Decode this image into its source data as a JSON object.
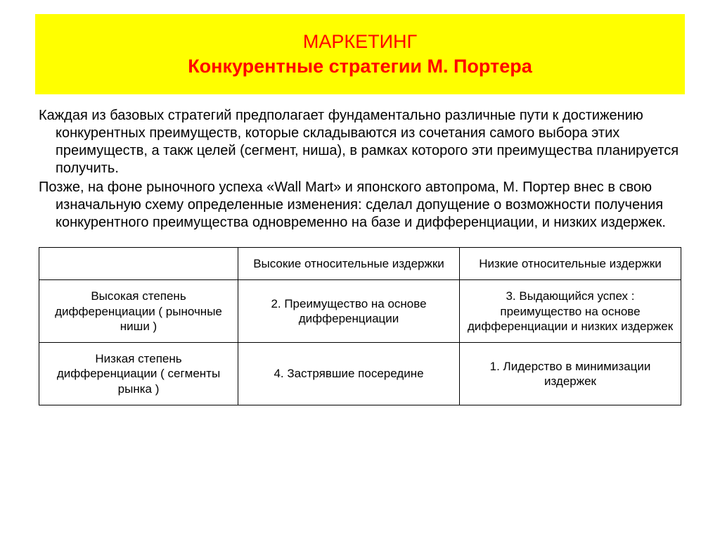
{
  "title": {
    "line1": "МАРКЕТИНГ",
    "line2": "Конкурентные стратегии М. Портера"
  },
  "body": {
    "para1": "Каждая из базовых стратегий предполагает фундаментально различные пути к достижению конкурентных преимуществ, которые складываются из сочетания самого выбора  этих преимуществ, а такж целей (сегмент, ниша), в рамках которого эти преимущества планируется получить.",
    "para2": "Позже, на фоне рыночного успеха «Wall Mart» и японского автопрома, М. Портер внес в свою изначальную схему определенные изменения: сделал допущение о возможности получения конкурентного преимущества одновременно на базе и дифференциации, и низких издержек."
  },
  "table": {
    "colHeaders": {
      "blank": "",
      "c1": "Высокие относительные издержки",
      "c2": "Низкие относительные издержки"
    },
    "rows": [
      {
        "head": "Высокая степень дифференциации ( рыночные ниши )",
        "c1": "2. Преимущество на основе дифференциации",
        "c2": "3. Выдающийся успех : преимущество на основе дифференциации и низких издержек"
      },
      {
        "head": "Низкая степень дифференциации ( сегменты рынка )",
        "c1": "4. Застрявшие посередине",
        "c2": "1. Лидерство в минимизации издержек"
      }
    ]
  },
  "colors": {
    "title_bg": "#ffff00",
    "title_text": "#ff0000",
    "body_text": "#000000",
    "table_border": "#000000",
    "page_bg": "#ffffff"
  },
  "fonts": {
    "title_size_pt": 20,
    "body_size_pt": 15,
    "table_size_pt": 13
  }
}
